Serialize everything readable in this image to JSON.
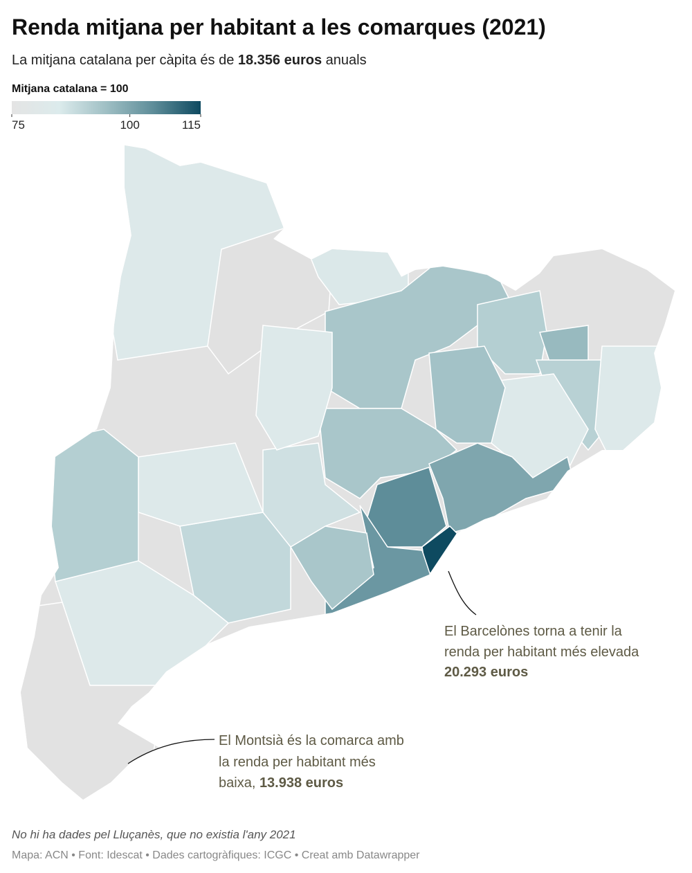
{
  "header": {
    "title": "Renda mitjana per habitant a les comarques (2021)",
    "subtitle": [
      "La mitjana catalana per càpita és de ",
      "18.356 euros",
      " anuals"
    ]
  },
  "legend": {
    "title": "Mitjana catalana = 100",
    "range": [
      75,
      115
    ],
    "ticks": [
      75,
      100,
      115
    ],
    "colors": [
      "#e4e4e4",
      "#dcebec",
      "#9fbfc4",
      "#5e8d99",
      "#0e4a60"
    ]
  },
  "annotations": [
    {
      "lines": [
        "El Barcelònes torna a tenir la",
        "renda per habitant més elevada",
        "20.293 euros"
      ]
    },
    {
      "lines": [
        "El Montsià és la comarca amb",
        "la renda per habitant més",
        "baixa, ",
        "13.938 euros"
      ]
    }
  ],
  "footer": {
    "note": "No hi ha dades pel Lluçanès, que no existia l'any 2021",
    "credit": "Mapa: ACN • Font: Idescat • Dades cartogràfiques: ICGC  • Creat amb Datawrapper"
  }
}
